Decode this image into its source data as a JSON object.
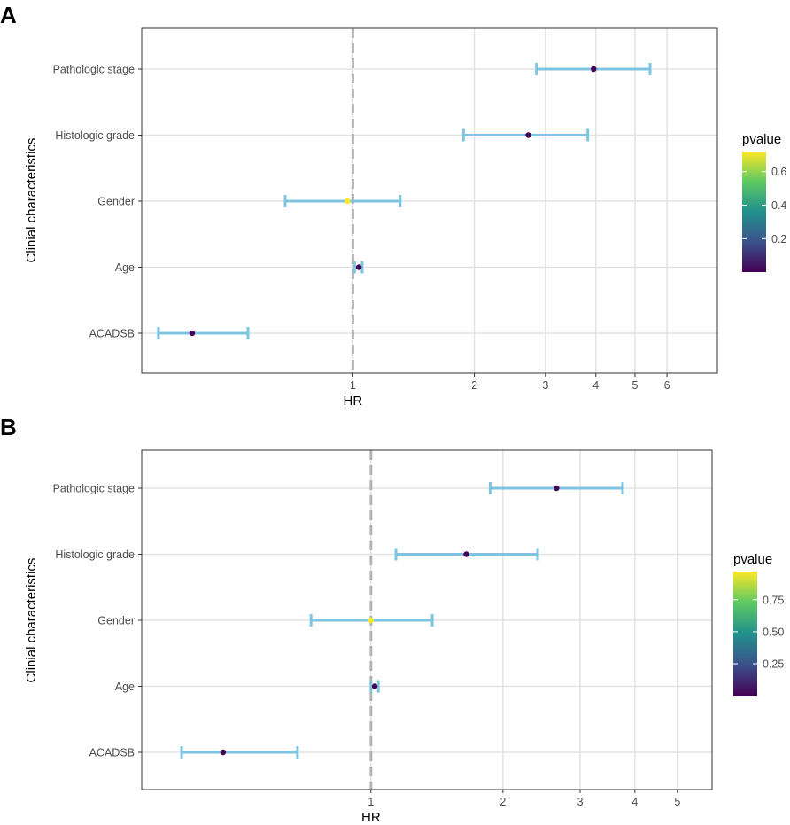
{
  "chart_data": [
    {
      "type": "forest",
      "panel_label": "A",
      "xlabel": "HR",
      "ylabel": "Clinial characteristics",
      "x_scale": "log",
      "xlim": [
        0.3,
        8.0
      ],
      "x_ticks": [
        1,
        2,
        3,
        4,
        5,
        6
      ],
      "reference_line": 1,
      "categories": [
        "Pathologic stage",
        "Histologic grade",
        "Gender",
        "Age",
        "ACADSB"
      ],
      "hr": [
        3.95,
        2.72,
        0.97,
        1.035,
        0.4
      ],
      "ci_lower": [
        2.85,
        1.88,
        0.68,
        1.01,
        0.33
      ],
      "ci_upper": [
        5.45,
        3.82,
        1.31,
        1.055,
        0.55
      ],
      "pvalue": [
        0.001,
        0.001,
        0.72,
        0.001,
        0.001
      ],
      "legend": {
        "title": "pvalue",
        "range": [
          0.001,
          0.72
        ],
        "ticks": [
          0.2,
          0.4,
          0.6
        ],
        "tick_labels": [
          "0.2",
          "0.4",
          "0.6"
        ]
      }
    },
    {
      "type": "forest",
      "panel_label": "B",
      "xlabel": "HR",
      "ylabel": "Clinial characteristics",
      "x_scale": "log",
      "xlim": [
        0.3,
        6.0
      ],
      "x_ticks": [
        1,
        2,
        3,
        4,
        5
      ],
      "reference_line": 1,
      "categories": [
        "Pathologic stage",
        "Histologic grade",
        "Gender",
        "Age",
        "ACADSB"
      ],
      "hr": [
        2.65,
        1.65,
        1.0,
        1.02,
        0.46
      ],
      "ci_lower": [
        1.87,
        1.14,
        0.73,
        1.0,
        0.37
      ],
      "ci_upper": [
        3.75,
        2.4,
        1.38,
        1.04,
        0.68
      ],
      "pvalue": [
        0.001,
        0.001,
        0.96,
        0.001,
        0.001
      ],
      "legend": {
        "title": "pvalue",
        "range": [
          0.001,
          0.97
        ],
        "ticks": [
          0.25,
          0.5,
          0.75
        ],
        "tick_labels": [
          "0.25",
          "0.50",
          "0.75"
        ]
      }
    }
  ],
  "colors": {
    "errorbar": "#7ec4e1",
    "grid": "#e3e3e3",
    "panel_border": "#333333",
    "reference_line": "#b3b3b3",
    "viridis": [
      "#440154",
      "#3b528b",
      "#21908d",
      "#5dc963",
      "#fde725"
    ]
  }
}
